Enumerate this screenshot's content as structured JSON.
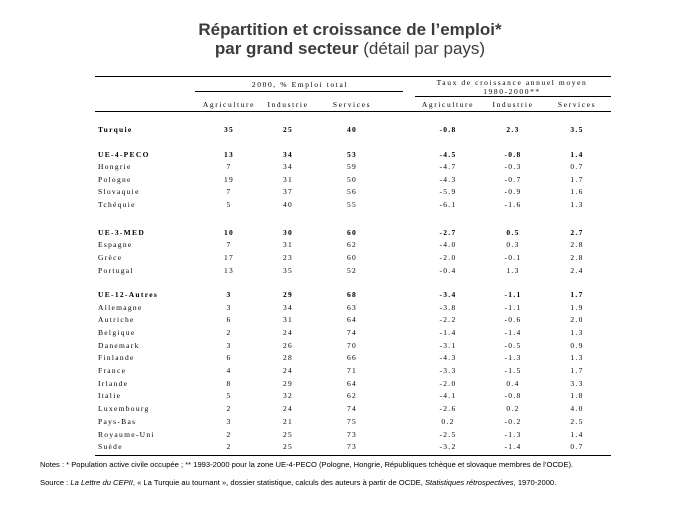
{
  "title": {
    "line1": "Répartition et croissance de l’emploi*",
    "line2_bold": "par grand secteur",
    "line2_normal": " (détail par pays)"
  },
  "header": {
    "group1": "2000, % Emploi total",
    "group2_line1": "Taux de croissance annuel moyen",
    "group2_line2": "1980-2000**",
    "columns": [
      "Agriculture",
      "Industrie",
      "Services",
      "Agriculture",
      "Industrie",
      "Services"
    ]
  },
  "rows": [
    {
      "label": "Turquie",
      "bold": true,
      "values": [
        "35",
        "25",
        "40",
        "-0.8",
        "2.3",
        "3.5"
      ]
    },
    {
      "label": "UE-4-PECO",
      "bold": true,
      "values": [
        "13",
        "34",
        "53",
        "-4.5",
        "-0.8",
        "1.4"
      ]
    },
    {
      "label": "Hongrie",
      "bold": false,
      "values": [
        "7",
        "34",
        "59",
        "-4.7",
        "-0.3",
        "0.7"
      ]
    },
    {
      "label": "Pologne",
      "bold": false,
      "values": [
        "19",
        "31",
        "50",
        "-4.3",
        "-0.7",
        "1.7"
      ]
    },
    {
      "label": "Slovaquie",
      "bold": false,
      "values": [
        "7",
        "37",
        "56",
        "-5.9",
        "-0.9",
        "1.6"
      ]
    },
    {
      "label": "Tchéquie",
      "bold": false,
      "values": [
        "5",
        "40",
        "55",
        "-6.1",
        "-1.6",
        "1.3"
      ]
    },
    {
      "label": "UE-3-MED",
      "bold": true,
      "values": [
        "10",
        "30",
        "60",
        "-2.7",
        "0.5",
        "2.7"
      ]
    },
    {
      "label": "Espagne",
      "bold": false,
      "values": [
        "7",
        "31",
        "62",
        "-4.0",
        "0.3",
        "2.8"
      ]
    },
    {
      "label": "Grèce",
      "bold": false,
      "values": [
        "17",
        "23",
        "60",
        "-2.0",
        "-0.1",
        "2.8"
      ]
    },
    {
      "label": "Portugal",
      "bold": false,
      "values": [
        "13",
        "35",
        "52",
        "-0.4",
        "1.3",
        "2.4"
      ]
    },
    {
      "label": "UE-12-Autres",
      "bold": true,
      "values": [
        "3",
        "29",
        "68",
        "-3.4",
        "-1.1",
        "1.7"
      ]
    },
    {
      "label": "Allemagne",
      "bold": false,
      "values": [
        "3",
        "34",
        "63",
        "-3.8",
        "-1.1",
        "1.9"
      ]
    },
    {
      "label": "Autriche",
      "bold": false,
      "values": [
        "6",
        "31",
        "64",
        "-2.2",
        "-0.6",
        "2.0"
      ]
    },
    {
      "label": "Belgique",
      "bold": false,
      "values": [
        "2",
        "24",
        "74",
        "-1.4",
        "-1.4",
        "1.3"
      ]
    },
    {
      "label": "Danemark",
      "bold": false,
      "values": [
        "3",
        "26",
        "70",
        "-3.1",
        "-0.5",
        "0.9"
      ]
    },
    {
      "label": "Finlande",
      "bold": false,
      "values": [
        "6",
        "28",
        "66",
        "-4.3",
        "-1.3",
        "1.3"
      ]
    },
    {
      "label": "France",
      "bold": false,
      "values": [
        "4",
        "24",
        "71",
        "-3.3",
        "-1.5",
        "1.7"
      ]
    },
    {
      "label": "Irlande",
      "bold": false,
      "values": [
        "8",
        "29",
        "64",
        "-2.0",
        "0.4",
        "3.3"
      ]
    },
    {
      "label": "Italie",
      "bold": false,
      "values": [
        "5",
        "32",
        "62",
        "-4.1",
        "-0.8",
        "1.8"
      ]
    },
    {
      "label": "Luxembourg",
      "bold": false,
      "values": [
        "2",
        "24",
        "74",
        "-2.6",
        "0.2",
        "4.0"
      ]
    },
    {
      "label": "Pays-Bas",
      "bold": false,
      "values": [
        "3",
        "21",
        "75",
        "0.2",
        "-0.2",
        "2.5"
      ]
    },
    {
      "label": "Royaume-Uni",
      "bold": false,
      "values": [
        "2",
        "25",
        "73",
        "-2.5",
        "-1.3",
        "1.4"
      ]
    },
    {
      "label": "Suède",
      "bold": false,
      "values": [
        "2",
        "25",
        "73",
        "-3.2",
        "-1.4",
        "0.7"
      ]
    }
  ],
  "notes": "Notes : * Population active civile occupée ; ** 1993-2000 pour la zone UE-4-PECO (Pologne, Hongrie, Républiques tchèque et slovaque membres de l’OCDE).",
  "source": {
    "prefix": "Source : ",
    "ital1": "La Lettre du CEPII",
    "mid": ", « La Turquie au  tournant », dossier statistique, calculs des auteurs à partir de OCDE, ",
    "ital2": "Statistiques rétrospectives",
    "suffix": ", 1970-2000."
  }
}
